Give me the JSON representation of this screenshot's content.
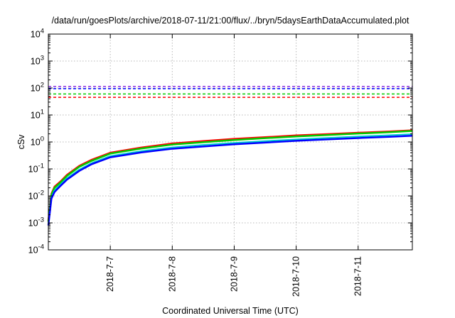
{
  "chart_data": {
    "type": "line",
    "title": "/data/run/goesPlots/archive/2018-07-11/21:00/flux/../bryn/5daysEarthDataAccumulated.plot",
    "xlabel": "Coordinated Universal Time (UTC)",
    "ylabel": "cSv",
    "yscale": "log",
    "ylim": [
      0.0001,
      10000
    ],
    "xlim": [
      "2018-07-06T00:00",
      "2018-07-11T21:00"
    ],
    "grid": true,
    "legend": "none",
    "y_ticks": [
      {
        "base": "10",
        "exp": "-4"
      },
      {
        "base": "10",
        "exp": "-3"
      },
      {
        "base": "10",
        "exp": "-2"
      },
      {
        "base": "10",
        "exp": "-1"
      },
      {
        "base": "10",
        "exp": "0"
      },
      {
        "base": "10",
        "exp": "1"
      },
      {
        "base": "10",
        "exp": "2"
      },
      {
        "base": "10",
        "exp": "3"
      },
      {
        "base": "10",
        "exp": "4"
      }
    ],
    "x_ticks": [
      {
        "label": "2018-7-7",
        "date": "2018-07-07"
      },
      {
        "label": "2018-7-8",
        "date": "2018-07-08"
      },
      {
        "label": "2018-7-9",
        "date": "2018-07-09"
      },
      {
        "label": "2018-7-10",
        "date": "2018-07-10"
      },
      {
        "label": "2018-7-11",
        "date": "2018-07-11"
      }
    ],
    "thresholds": [
      {
        "color": "#8a2be2",
        "value": 115
      },
      {
        "color": "#0000ff",
        "value": 95
      },
      {
        "color": "#00cc00",
        "value": 60
      },
      {
        "color": "#ff0000",
        "value": 45
      }
    ],
    "series": [
      {
        "color": "#ff0000",
        "width": 2.5,
        "x": [
          "2018-07-06T00:00",
          "2018-07-06T01:12",
          "2018-07-06T02:24",
          "2018-07-06T04:48",
          "2018-07-06T07:12",
          "2018-07-06T12:00",
          "2018-07-06T16:48",
          "2018-07-07T00:00",
          "2018-07-07T12:00",
          "2018-07-08T00:00",
          "2018-07-08T12:00",
          "2018-07-09T00:00",
          "2018-07-09T12:00",
          "2018-07-10T00:00",
          "2018-07-10T12:00",
          "2018-07-11T00:00",
          "2018-07-11T12:00",
          "2018-07-11T21:00"
        ],
        "values": [
          0.0012,
          0.012,
          0.022,
          0.035,
          0.06,
          0.13,
          0.22,
          0.4,
          0.62,
          0.88,
          1.08,
          1.3,
          1.5,
          1.75,
          1.95,
          2.2,
          2.45,
          2.7
        ]
      },
      {
        "color": "#00cc00",
        "width": 2.5,
        "x": [
          "2018-07-06T00:00",
          "2018-07-06T01:12",
          "2018-07-06T02:24",
          "2018-07-06T04:48",
          "2018-07-06T07:12",
          "2018-07-06T12:00",
          "2018-07-06T16:48",
          "2018-07-07T00:00",
          "2018-07-07T12:00",
          "2018-07-08T00:00",
          "2018-07-08T12:00",
          "2018-07-09T00:00",
          "2018-07-09T12:00",
          "2018-07-10T00:00",
          "2018-07-10T12:00",
          "2018-07-11T00:00",
          "2018-07-11T12:00",
          "2018-07-11T21:00"
        ],
        "values": [
          0.0011,
          0.011,
          0.02,
          0.032,
          0.055,
          0.12,
          0.2,
          0.37,
          0.57,
          0.8,
          0.98,
          1.18,
          1.38,
          1.6,
          1.8,
          2.05,
          2.3,
          2.55
        ]
      },
      {
        "color": "#00cccc",
        "width": 2,
        "x": [
          "2018-07-06T00:00",
          "2018-07-06T01:12",
          "2018-07-06T02:24",
          "2018-07-06T04:48",
          "2018-07-06T07:12",
          "2018-07-06T12:00",
          "2018-07-06T16:48",
          "2018-07-07T00:00",
          "2018-07-07T12:00",
          "2018-07-08T00:00",
          "2018-07-08T12:00",
          "2018-07-09T00:00",
          "2018-07-09T12:00",
          "2018-07-10T00:00",
          "2018-07-10T12:00",
          "2018-07-11T00:00",
          "2018-07-11T12:00",
          "2018-07-11T21:00"
        ],
        "values": [
          0.0009,
          0.009,
          0.016,
          0.027,
          0.045,
          0.095,
          0.165,
          0.3,
          0.46,
          0.63,
          0.78,
          0.93,
          1.08,
          1.25,
          1.42,
          1.6,
          1.78,
          1.95
        ]
      },
      {
        "color": "#0000ff",
        "width": 2.5,
        "x": [
          "2018-07-06T00:00",
          "2018-07-06T01:12",
          "2018-07-06T02:24",
          "2018-07-06T04:48",
          "2018-07-06T07:12",
          "2018-07-06T12:00",
          "2018-07-06T16:48",
          "2018-07-07T00:00",
          "2018-07-07T12:00",
          "2018-07-08T00:00",
          "2018-07-08T12:00",
          "2018-07-09T00:00",
          "2018-07-09T12:00",
          "2018-07-10T00:00",
          "2018-07-10T12:00",
          "2018-07-11T00:00",
          "2018-07-11T12:00",
          "2018-07-11T21:00"
        ],
        "values": [
          0.0008,
          0.008,
          0.014,
          0.024,
          0.04,
          0.085,
          0.15,
          0.27,
          0.41,
          0.56,
          0.68,
          0.82,
          0.95,
          1.1,
          1.25,
          1.4,
          1.55,
          1.7
        ]
      }
    ]
  }
}
